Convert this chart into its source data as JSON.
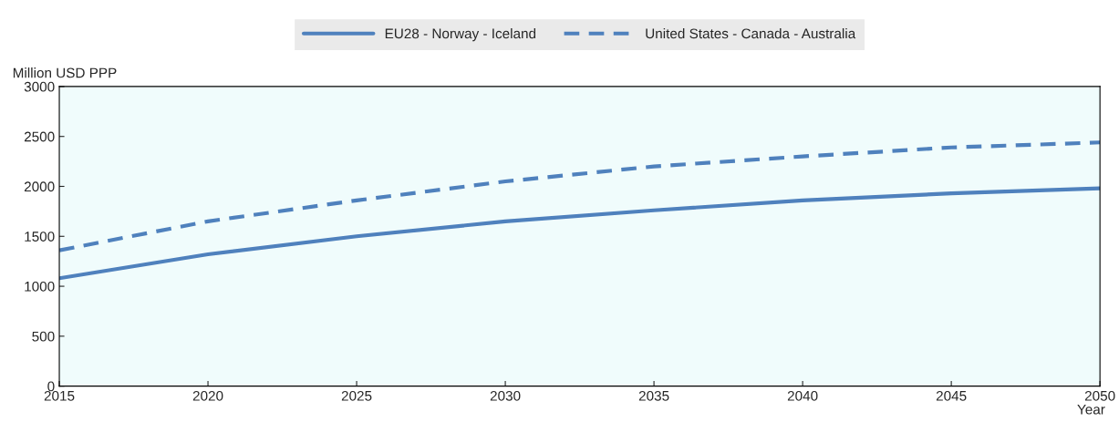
{
  "chart_data": {
    "type": "line",
    "ylabel": "Million USD PPP",
    "xlabel": "Year",
    "x": [
      2015,
      2020,
      2025,
      2030,
      2035,
      2040,
      2045,
      2050
    ],
    "series": [
      {
        "name": "EU28 - Norway - Iceland",
        "color": "#4f81bd",
        "line_style": "solid",
        "values": [
          1080,
          1320,
          1500,
          1650,
          1760,
          1860,
          1930,
          1980
        ]
      },
      {
        "name": "United States - Canada - Australia",
        "color": "#4f81bd",
        "line_style": "dashed",
        "values": [
          1360,
          1650,
          1860,
          2050,
          2200,
          2300,
          2390,
          2440
        ]
      }
    ],
    "xlim": [
      2015,
      2050
    ],
    "xticks": [
      2015,
      2020,
      2025,
      2030,
      2035,
      2040,
      2045,
      2050
    ],
    "ylim": [
      0,
      3000
    ],
    "yticks": [
      0,
      500,
      1000,
      1500,
      2000,
      2500,
      3000
    ],
    "grid": false,
    "legend": "top",
    "marker": "none"
  }
}
